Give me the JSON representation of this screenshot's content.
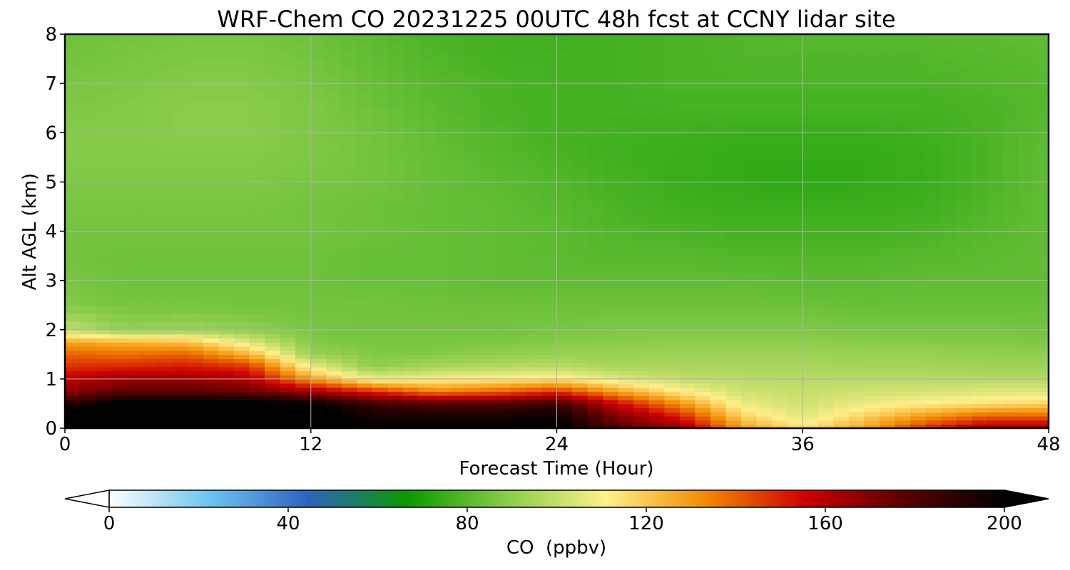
{
  "chart_data": {
    "type": "heatmap",
    "title": "WRF-Chem CO  20231225 00UTC 48h fcst at CCNY lidar site",
    "xlabel": "Forecast Time (Hour)",
    "ylabel": "Alt AGL (km)",
    "xlim": [
      0,
      48
    ],
    "ylim": [
      0,
      8
    ],
    "x_ticks": [
      "0",
      "12",
      "24",
      "36",
      "48"
    ],
    "y_ticks": [
      "0",
      "1",
      "2",
      "3",
      "4",
      "5",
      "6",
      "7",
      "8"
    ],
    "grid": true,
    "colorbar": {
      "label": "CO  (ppbv)",
      "range": [
        0,
        200
      ],
      "extend": "both",
      "ticks": [
        "0",
        "40",
        "80",
        "120",
        "160",
        "200"
      ],
      "colors": [
        "#ffffff",
        "#6ec4f0",
        "#2f63c0",
        "#0a9a00",
        "#8acc4c",
        "#fff08c",
        "#f28a00",
        "#cc0000",
        "#5a0000",
        "#000000"
      ]
    },
    "x_hours": [
      0,
      3,
      6,
      9,
      12,
      15,
      18,
      21,
      24,
      27,
      30,
      33,
      36,
      39,
      42,
      45,
      48
    ],
    "altitude_km": [
      0.0,
      0.25,
      0.5,
      0.75,
      1.0,
      1.25,
      1.5,
      1.75,
      2.0,
      2.5,
      3.0,
      3.5,
      4.0,
      4.5,
      5.0,
      5.5,
      6.0,
      6.5,
      7.0,
      7.5,
      8.0
    ],
    "co_ppbv": [
      [
        205,
        205,
        205,
        205,
        205,
        200,
        200,
        200,
        202,
        180,
        168,
        130,
        115,
        128,
        150,
        165,
        165
      ],
      [
        205,
        205,
        205,
        205,
        205,
        195,
        195,
        195,
        198,
        170,
        150,
        118,
        105,
        118,
        130,
        140,
        140
      ],
      [
        190,
        205,
        205,
        205,
        200,
        185,
        180,
        180,
        185,
        155,
        132,
        108,
        102,
        108,
        112,
        115,
        118
      ],
      [
        168,
        178,
        178,
        175,
        165,
        150,
        135,
        140,
        148,
        128,
        112,
        102,
        100,
        102,
        103,
        105,
        105
      ],
      [
        158,
        165,
        165,
        160,
        130,
        108,
        110,
        112,
        115,
        105,
        100,
        98,
        98,
        98,
        98,
        97,
        97
      ],
      [
        148,
        150,
        152,
        148,
        108,
        90,
        95,
        97,
        98,
        95,
        95,
        95,
        95,
        94,
        94,
        93,
        93
      ],
      [
        140,
        138,
        140,
        125,
        92,
        88,
        88,
        90,
        92,
        92,
        93,
        93,
        93,
        92,
        92,
        91,
        90
      ],
      [
        128,
        125,
        122,
        105,
        88,
        86,
        86,
        87,
        88,
        89,
        90,
        90,
        90,
        89,
        88,
        88,
        87
      ],
      [
        100,
        90,
        92,
        90,
        86,
        85,
        85,
        85,
        86,
        87,
        87,
        87,
        87,
        86,
        86,
        86,
        85
      ],
      [
        88,
        86,
        86,
        85,
        85,
        85,
        84,
        84,
        84,
        84,
        84,
        84,
        84,
        83,
        83,
        83,
        83
      ],
      [
        86,
        84,
        84,
        84,
        84,
        83,
        83,
        82,
        82,
        82,
        82,
        82,
        81,
        81,
        82,
        82,
        82
      ],
      [
        85,
        84,
        84,
        84,
        84,
        83,
        83,
        82,
        81,
        80,
        80,
        79,
        79,
        79,
        80,
        81,
        82
      ],
      [
        85,
        85,
        85,
        85,
        85,
        84,
        83,
        82,
        81,
        79,
        78,
        77,
        77,
        77,
        78,
        80,
        82
      ],
      [
        86,
        86,
        86,
        86,
        85,
        84,
        83,
        82,
        80,
        78,
        76,
        75,
        75,
        75,
        76,
        79,
        82
      ],
      [
        87,
        87,
        87,
        87,
        86,
        85,
        83,
        81,
        79,
        77,
        75,
        74,
        73,
        74,
        75,
        78,
        82
      ],
      [
        88,
        88,
        88,
        88,
        87,
        85,
        83,
        80,
        78,
        76,
        75,
        74,
        74,
        74,
        75,
        78,
        82
      ],
      [
        88,
        88,
        89,
        89,
        87,
        85,
        82,
        79,
        77,
        76,
        76,
        75,
        75,
        75,
        76,
        78,
        81
      ],
      [
        87,
        88,
        89,
        89,
        87,
        84,
        81,
        78,
        77,
        77,
        77,
        77,
        77,
        77,
        77,
        78,
        80
      ],
      [
        86,
        87,
        88,
        88,
        86,
        83,
        80,
        78,
        77,
        77,
        78,
        78,
        78,
        78,
        78,
        79,
        80
      ],
      [
        85,
        86,
        87,
        87,
        85,
        82,
        79,
        77,
        77,
        77,
        78,
        79,
        79,
        79,
        79,
        80,
        81
      ],
      [
        84,
        85,
        86,
        86,
        84,
        81,
        78,
        77,
        76,
        77,
        78,
        79,
        80,
        80,
        80,
        81,
        82
      ]
    ]
  }
}
